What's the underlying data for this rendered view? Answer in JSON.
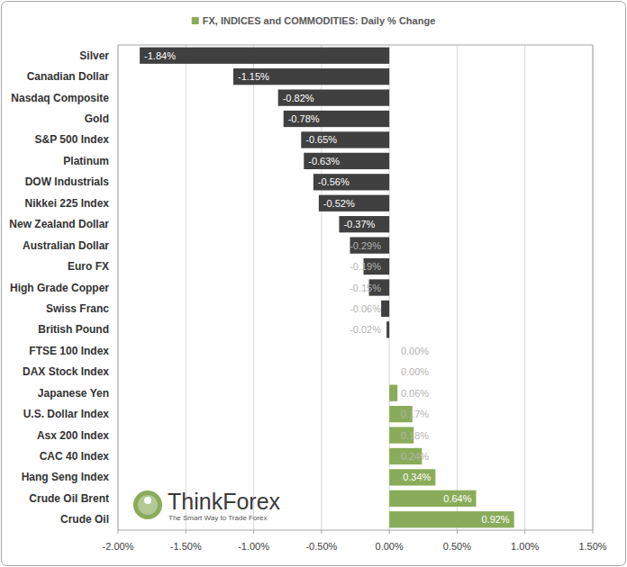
{
  "chart_data": {
    "type": "bar",
    "orientation": "horizontal",
    "categories": [
      "Silver",
      "Canadian Dollar",
      "Nasdaq Composite",
      "Gold",
      "S&P 500 Index",
      "Platinum",
      "DOW Industrials",
      "Nikkei 225 Index",
      "New Zealand Dollar",
      "Australian Dollar",
      "Euro FX",
      "High Grade Copper",
      "Swiss Franc",
      "British Pound",
      "FTSE 100 Index",
      "DAX Stock Index",
      "Japanese Yen",
      "U.S. Dollar Index",
      "Asx 200 Index",
      "CAC 40 Index",
      "Hang Seng Index",
      "Crude Oil Brent",
      "Crude Oil"
    ],
    "series": [
      {
        "name": "FX, INDICES and COMMODITIES: Daily % Change",
        "color": "#8aac5a",
        "values": [
          -1.84,
          -1.15,
          -0.82,
          -0.78,
          -0.65,
          -0.63,
          -0.56,
          -0.52,
          -0.37,
          -0.29,
          -0.19,
          -0.15,
          -0.06,
          -0.02,
          0.0,
          0.0,
          0.06,
          0.17,
          0.18,
          0.24,
          0.34,
          0.64,
          0.92
        ],
        "value_labels": [
          "-1.84%",
          "-1.15%",
          "-0.82%",
          "-0.78%",
          "-0.65%",
          "-0.63%",
          "-0.56%",
          "-0.52%",
          "-0.37%",
          "-0.29%",
          "-0.19%",
          "-0.15%",
          "-0.06%",
          "-0.02%",
          "0.00%",
          "0.00%",
          "0.06%",
          "0.17%",
          "0.18%",
          "0.24%",
          "0.34%",
          "0.64%",
          "0.92%"
        ],
        "colors": [
          "#404040",
          "#404040",
          "#404040",
          "#404040",
          "#404040",
          "#404040",
          "#404040",
          "#404040",
          "#404040",
          "#404040",
          "#404040",
          "#404040",
          "#404040",
          "#404040",
          "#8aac5a",
          "#8aac5a",
          "#8aac5a",
          "#8aac5a",
          "#8aac5a",
          "#8aac5a",
          "#8aac5a",
          "#8aac5a",
          "#8aac5a"
        ]
      }
    ],
    "xlim": [
      -2.0,
      1.5
    ],
    "xticks": [
      {
        "value": -2.0,
        "label": "-2.00%"
      },
      {
        "value": -1.5,
        "label": "-1.50%"
      },
      {
        "value": -1.0,
        "label": "-1.00%"
      },
      {
        "value": -0.5,
        "label": "-0.50%"
      },
      {
        "value": 0.0,
        "label": "0.00%"
      },
      {
        "value": 0.5,
        "label": "0.50%"
      },
      {
        "value": 1.0,
        "label": "1.00%"
      },
      {
        "value": 1.5,
        "label": "1.50%"
      }
    ],
    "grid": true,
    "legend": "top",
    "data_labels": true,
    "annotations": [
      "ThinkForex",
      "The Smart Way to Trade Forex"
    ]
  }
}
